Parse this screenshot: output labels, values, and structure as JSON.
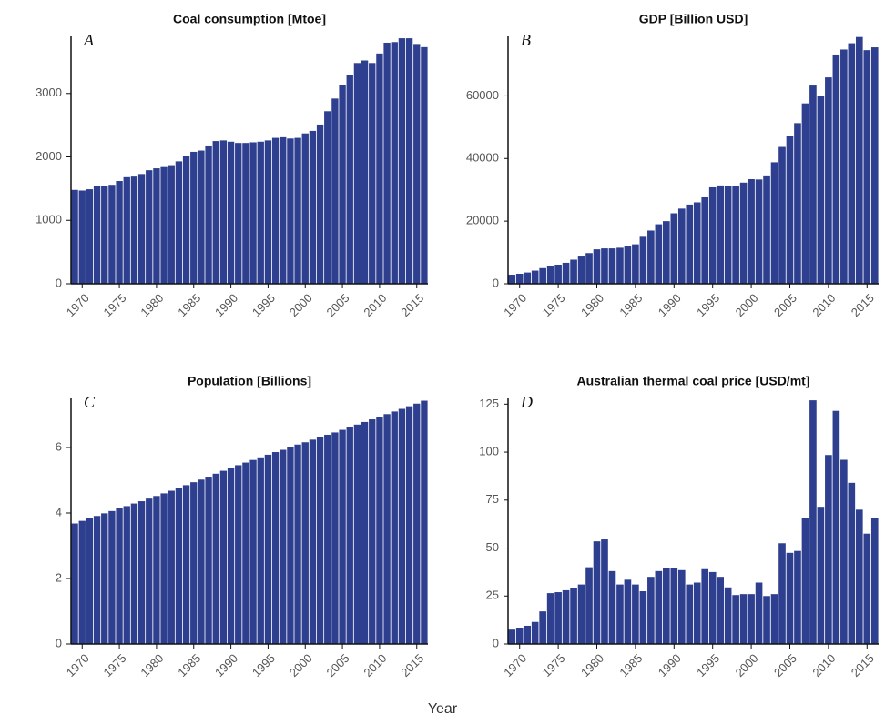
{
  "xlabel": "Year",
  "chart_data": [
    {
      "type": "bar",
      "title": "Coal consumption [Mtoe]",
      "panel_label": "A",
      "color": "#2d3f8e",
      "x": [
        1969,
        1970,
        1971,
        1972,
        1973,
        1974,
        1975,
        1976,
        1977,
        1978,
        1979,
        1980,
        1981,
        1982,
        1983,
        1984,
        1985,
        1986,
        1987,
        1988,
        1989,
        1990,
        1991,
        1992,
        1993,
        1994,
        1995,
        1996,
        1997,
        1998,
        1999,
        2000,
        2001,
        2002,
        2003,
        2004,
        2005,
        2006,
        2007,
        2008,
        2009,
        2010,
        2011,
        2012,
        2013,
        2014,
        2015,
        2016
      ],
      "values": [
        1480,
        1470,
        1490,
        1540,
        1540,
        1560,
        1620,
        1680,
        1690,
        1730,
        1790,
        1820,
        1840,
        1870,
        1930,
        2010,
        2080,
        2100,
        2180,
        2250,
        2260,
        2240,
        2220,
        2220,
        2230,
        2240,
        2260,
        2300,
        2310,
        2290,
        2300,
        2370,
        2410,
        2510,
        2720,
        2920,
        3140,
        3290,
        3480,
        3520,
        3480,
        3630,
        3800,
        3810,
        3870,
        3870,
        3780,
        3730
      ],
      "xlim": [
        1968.5,
        2016.5
      ],
      "xticks": [
        1970,
        1975,
        1980,
        1985,
        1990,
        1995,
        2000,
        2005,
        2010,
        2015
      ],
      "ylim": [
        0,
        3900
      ],
      "yticks": [
        0,
        1000,
        2000,
        3000
      ]
    },
    {
      "type": "bar",
      "title": "GDP [Billion USD]",
      "panel_label": "B",
      "color": "#2d3f8e",
      "x": [
        1969,
        1970,
        1971,
        1972,
        1973,
        1974,
        1975,
        1976,
        1977,
        1978,
        1979,
        1980,
        1981,
        1982,
        1983,
        1984,
        1985,
        1986,
        1987,
        1988,
        1989,
        1990,
        1991,
        1992,
        1993,
        1994,
        1995,
        1996,
        1997,
        1998,
        1999,
        2000,
        2001,
        2002,
        2003,
        2004,
        2005,
        2006,
        2007,
        2008,
        2009,
        2010,
        2011,
        2012,
        2013,
        2014,
        2015,
        2016
      ],
      "values": [
        2900,
        3200,
        3600,
        4200,
        5000,
        5600,
        6100,
        6700,
        7700,
        8700,
        9800,
        11000,
        11300,
        11300,
        11500,
        11900,
        12600,
        15000,
        17000,
        19000,
        20000,
        22500,
        24000,
        25300,
        26000,
        27600,
        30800,
        31400,
        31300,
        31200,
        32300,
        33400,
        33300,
        34600,
        38800,
        43700,
        47200,
        51300,
        57600,
        63300,
        60100,
        65900,
        73200,
        74800,
        76800,
        78800,
        74600,
        75500
      ],
      "xlim": [
        1968.5,
        2016.5
      ],
      "xticks": [
        1970,
        1975,
        1980,
        1985,
        1990,
        1995,
        2000,
        2005,
        2010,
        2015
      ],
      "ylim": [
        0,
        79000
      ],
      "yticks": [
        0,
        20000,
        40000,
        60000
      ]
    },
    {
      "type": "bar",
      "title": "Population [Billions]",
      "panel_label": "C",
      "color": "#2d3f8e",
      "x": [
        1969,
        1970,
        1971,
        1972,
        1973,
        1974,
        1975,
        1976,
        1977,
        1978,
        1979,
        1980,
        1981,
        1982,
        1983,
        1984,
        1985,
        1986,
        1987,
        1988,
        1989,
        1990,
        1991,
        1992,
        1993,
        1994,
        1995,
        1996,
        1997,
        1998,
        1999,
        2000,
        2001,
        2002,
        2003,
        2004,
        2005,
        2006,
        2007,
        2008,
        2009,
        2010,
        2011,
        2012,
        2013,
        2014,
        2015,
        2016
      ],
      "values": [
        3.68,
        3.76,
        3.84,
        3.91,
        3.99,
        4.06,
        4.14,
        4.21,
        4.29,
        4.36,
        4.44,
        4.52,
        4.6,
        4.68,
        4.77,
        4.85,
        4.94,
        5.02,
        5.11,
        5.2,
        5.29,
        5.37,
        5.46,
        5.54,
        5.62,
        5.7,
        5.78,
        5.86,
        5.93,
        6.01,
        6.09,
        6.16,
        6.24,
        6.31,
        6.39,
        6.46,
        6.54,
        6.62,
        6.7,
        6.78,
        6.86,
        6.94,
        7.02,
        7.1,
        7.18,
        7.26,
        7.34,
        7.43
      ],
      "xlim": [
        1968.5,
        2016.5
      ],
      "xticks": [
        1970,
        1975,
        1980,
        1985,
        1990,
        1995,
        2000,
        2005,
        2010,
        2015
      ],
      "ylim": [
        0,
        7.5
      ],
      "yticks": [
        0,
        2,
        4,
        6
      ]
    },
    {
      "type": "bar",
      "title": "Australian thermal coal price [USD/mt]",
      "panel_label": "D",
      "color": "#2d3f8e",
      "x": [
        1969,
        1970,
        1971,
        1972,
        1973,
        1974,
        1975,
        1976,
        1977,
        1978,
        1979,
        1980,
        1981,
        1982,
        1983,
        1984,
        1985,
        1986,
        1987,
        1988,
        1989,
        1990,
        1991,
        1992,
        1993,
        1994,
        1995,
        1996,
        1997,
        1998,
        1999,
        2000,
        2001,
        2002,
        2003,
        2004,
        2005,
        2006,
        2007,
        2008,
        2009,
        2010,
        2011,
        2012,
        2013,
        2014,
        2015,
        2016
      ],
      "values": [
        7.5,
        8.5,
        9.5,
        11.5,
        17,
        26.5,
        27,
        28,
        29,
        31,
        40,
        53.5,
        54.5,
        38,
        31,
        33.5,
        31,
        27.5,
        35,
        38,
        39.5,
        39.5,
        38.5,
        31,
        32,
        39,
        37.5,
        35,
        29.5,
        25.5,
        26,
        26,
        32,
        25,
        26,
        52.5,
        47.5,
        48.5,
        65.5,
        127,
        71.5,
        98.5,
        121.5,
        96,
        84,
        70,
        57.5,
        65.5
      ],
      "xlim": [
        1968.5,
        2016.5
      ],
      "xticks": [
        1970,
        1975,
        1980,
        1985,
        1990,
        1995,
        2000,
        2005,
        2010,
        2015
      ],
      "ylim": [
        0,
        128
      ],
      "yticks": [
        0,
        25,
        50,
        75,
        100,
        125
      ]
    }
  ]
}
